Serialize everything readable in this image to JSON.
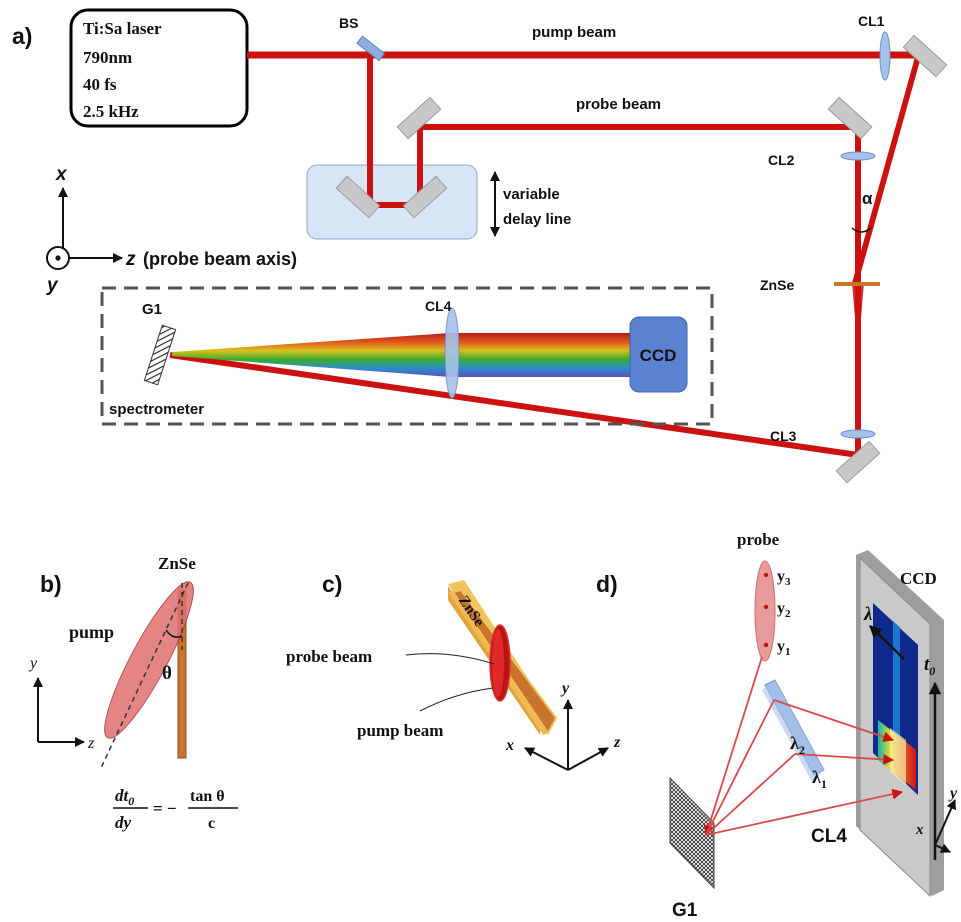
{
  "panel_a": {
    "panel_label": "a)",
    "laser_lines": [
      "Ti:Sa laser",
      "790nm",
      "40 fs",
      "2.5 kHz"
    ],
    "bs": "BS",
    "pump_beam": "pump beam",
    "probe_beam": "probe beam",
    "cl1": "CL1",
    "cl2": "CL2",
    "cl3": "CL3",
    "cl4": "CL4",
    "alpha": "α",
    "znse": "ZnSe",
    "delay_line": [
      "variable",
      "delay line"
    ],
    "axis_x": "x",
    "axis_y": "y",
    "axis_z": "z",
    "axis_z_note": "(probe beam axis)",
    "g1": "G1",
    "ccd": "CCD",
    "spectrometer": "spectrometer"
  },
  "panel_b": {
    "panel_label": "b)",
    "znse": "ZnSe",
    "pump": "pump",
    "theta": "θ",
    "axis_y": "y",
    "axis_z": "z",
    "eq_lhs_top": "dt",
    "eq_lhs_sub": "0",
    "eq_lhs_bottom": "dy",
    "eq_equals": "= −",
    "eq_rhs_top": "tan θ",
    "eq_rhs_bottom": "c"
  },
  "panel_c": {
    "panel_label": "c)",
    "znse": "ZnSe",
    "probe_beam": "probe beam",
    "pump_beam": "pump beam",
    "axis_x": "x",
    "axis_y": "y",
    "axis_z": "z"
  },
  "panel_d": {
    "panel_label": "d)",
    "probe": "probe",
    "y_labels": [
      {
        "base": "y",
        "sub": "3"
      },
      {
        "base": "y",
        "sub": "2"
      },
      {
        "base": "y",
        "sub": "1"
      }
    ],
    "ccd": "CCD",
    "lambda": "λ",
    "t0": {
      "base": "t",
      "sub": "0"
    },
    "lambda2": {
      "base": "λ",
      "sub": "2"
    },
    "lambda1": {
      "base": "λ",
      "sub": "1"
    },
    "cl4": "CL4",
    "g1": "G1",
    "axis_x": "x",
    "axis_y": "y"
  },
  "colors": {
    "beam": "#cc1111",
    "znse": "#c8742f",
    "lens": "#8eaee0",
    "mirror": "#c8c8c8",
    "ccd": "#5b82d0",
    "delay_box": "#d6e6f7"
  }
}
